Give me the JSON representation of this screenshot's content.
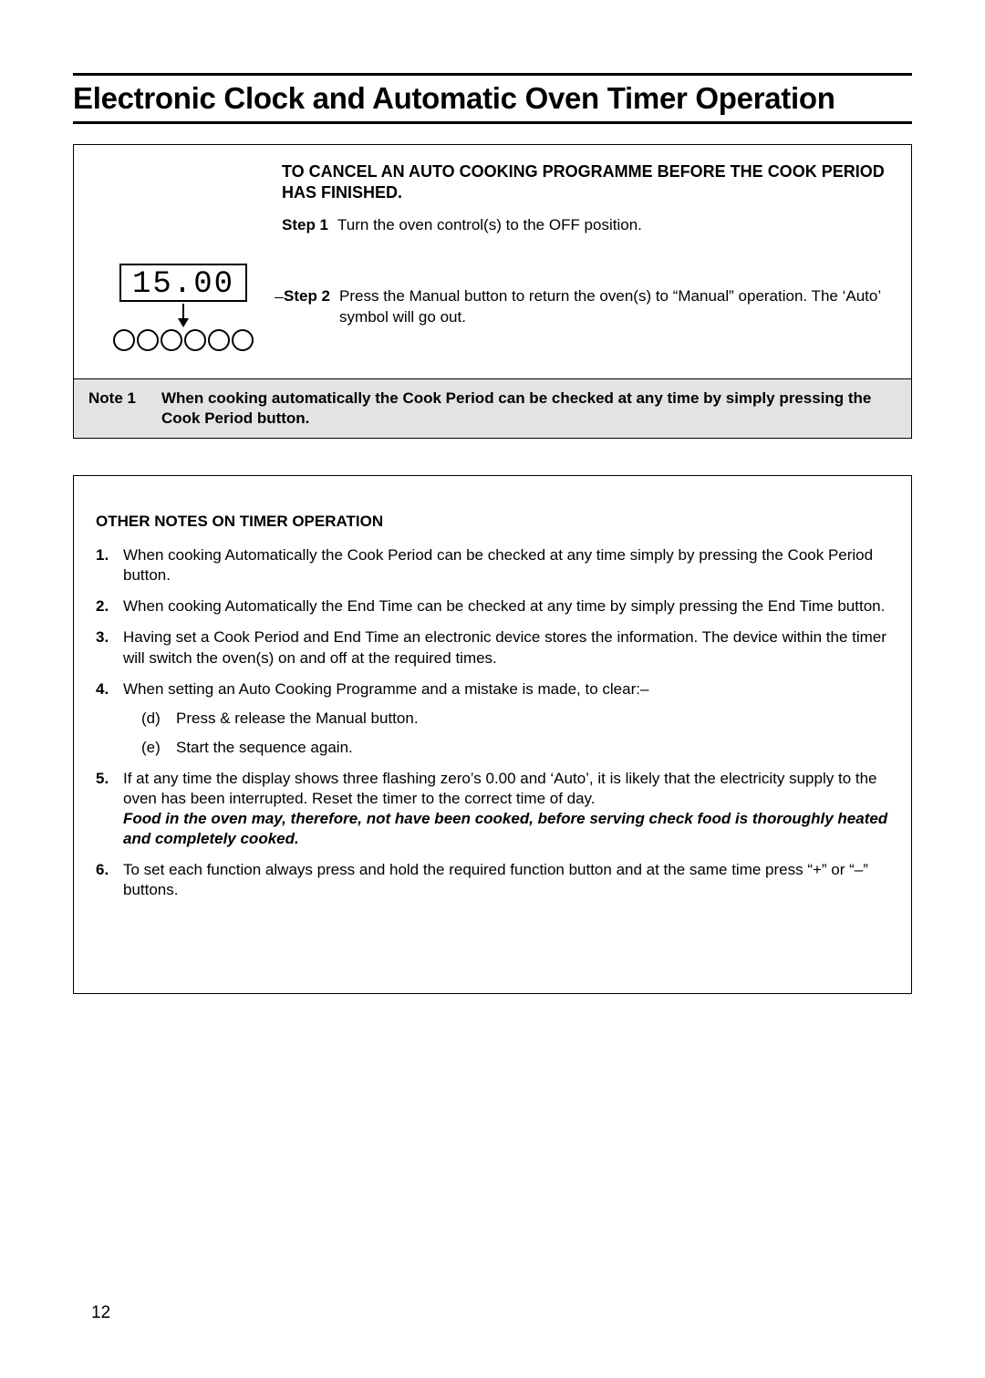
{
  "page": {
    "title": "Electronic Clock and Automatic Oven Timer Operation",
    "pageNumber": "12"
  },
  "cancel": {
    "heading": "TO CANCEL AN AUTO COOKING PROGRAMME BEFORE THE COOK PERIOD HAS FINISHED.",
    "step1Label": "Step 1",
    "step1Text": "Turn the oven control(s) to the OFF position.",
    "step2Label": "Step 2",
    "step2Text": "Press the Manual button to return the oven(s) to “Manual” operation. The ‘Auto’ symbol will go out.",
    "displayTime": "15.00"
  },
  "note1": {
    "label": "Note 1",
    "text": "When cooking automatically the Cook Period can be checked at any time by simply pressing the Cook Period button."
  },
  "otherNotes": {
    "heading": "OTHER NOTES ON TIMER OPERATION",
    "items": [
      {
        "num": "1.",
        "text": "When cooking Automatically the Cook Period can be checked at any time simply by pressing the Cook Period button."
      },
      {
        "num": "2.",
        "text": "When cooking Automatically the End Time can be checked at any time by simply pressing the End Time button."
      },
      {
        "num": "3.",
        "text": "Having set a Cook Period and End Time an electronic device stores the information. The device within the timer will switch the oven(s) on and off at the required times."
      },
      {
        "num": "4.",
        "text": "When setting an Auto Cooking Programme and a mistake is made, to clear:–",
        "subs": [
          {
            "letter": "(d)",
            "text": "Press & release the Manual button."
          },
          {
            "letter": "(e)",
            "text": "Start the sequence again."
          }
        ]
      },
      {
        "num": "5.",
        "text": "If at any time the display shows three flashing zero’s 0.00 and ‘Auto’, it is likely that the electricity supply to the oven has been interrupted. Reset the timer to the correct time of day.",
        "warning": "Food in the oven may, therefore, not have been cooked, before serving check food is thoroughly heated and completely cooked."
      },
      {
        "num": "6.",
        "text": "To set each function always press and hold the required function button and at the same time press “+” or “–” buttons."
      }
    ]
  }
}
